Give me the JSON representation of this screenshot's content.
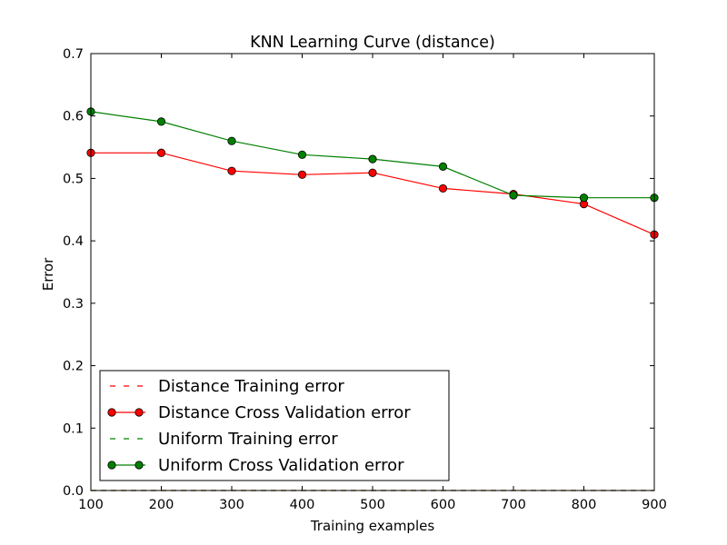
{
  "chart_data": {
    "type": "line",
    "title": "KNN Learning Curve (distance)",
    "xlabel": "Training examples",
    "ylabel": "Error",
    "xlim": [
      100,
      900
    ],
    "ylim": [
      0.0,
      0.7
    ],
    "grid": false,
    "legend_position": "lower-left",
    "x": [
      100,
      200,
      300,
      400,
      500,
      600,
      700,
      800,
      900
    ],
    "x_ticks": [
      100,
      200,
      300,
      400,
      500,
      600,
      700,
      800,
      900
    ],
    "x_tick_labels": [
      "100",
      "200",
      "300",
      "400",
      "500",
      "600",
      "700",
      "800",
      "900"
    ],
    "y_ticks": [
      0.0,
      0.1,
      0.2,
      0.3,
      0.4,
      0.5,
      0.6,
      0.7
    ],
    "y_tick_labels": [
      "0.0",
      "0.1",
      "0.2",
      "0.3",
      "0.4",
      "0.5",
      "0.6",
      "0.7"
    ],
    "series": [
      {
        "name": "Distance Training error",
        "color": "#ff0000",
        "style": "dashed",
        "marker": "none",
        "values": [
          0,
          0,
          0,
          0,
          0,
          0,
          0,
          0,
          0
        ]
      },
      {
        "name": "Distance Cross Validation error",
        "color": "#ff0000",
        "style": "solid",
        "marker": "circle",
        "values": [
          0.541,
          0.541,
          0.512,
          0.506,
          0.509,
          0.484,
          0.475,
          0.459,
          0.41
        ]
      },
      {
        "name": "Uniform Training error",
        "color": "#008000",
        "style": "dashed",
        "marker": "none",
        "values": [
          0,
          0,
          0,
          0,
          0,
          0,
          0,
          0,
          0
        ]
      },
      {
        "name": "Uniform Cross Validation error",
        "color": "#008000",
        "style": "solid",
        "marker": "circle",
        "values": [
          0.607,
          0.591,
          0.56,
          0.538,
          0.531,
          0.519,
          0.473,
          0.469,
          0.469
        ]
      }
    ]
  }
}
